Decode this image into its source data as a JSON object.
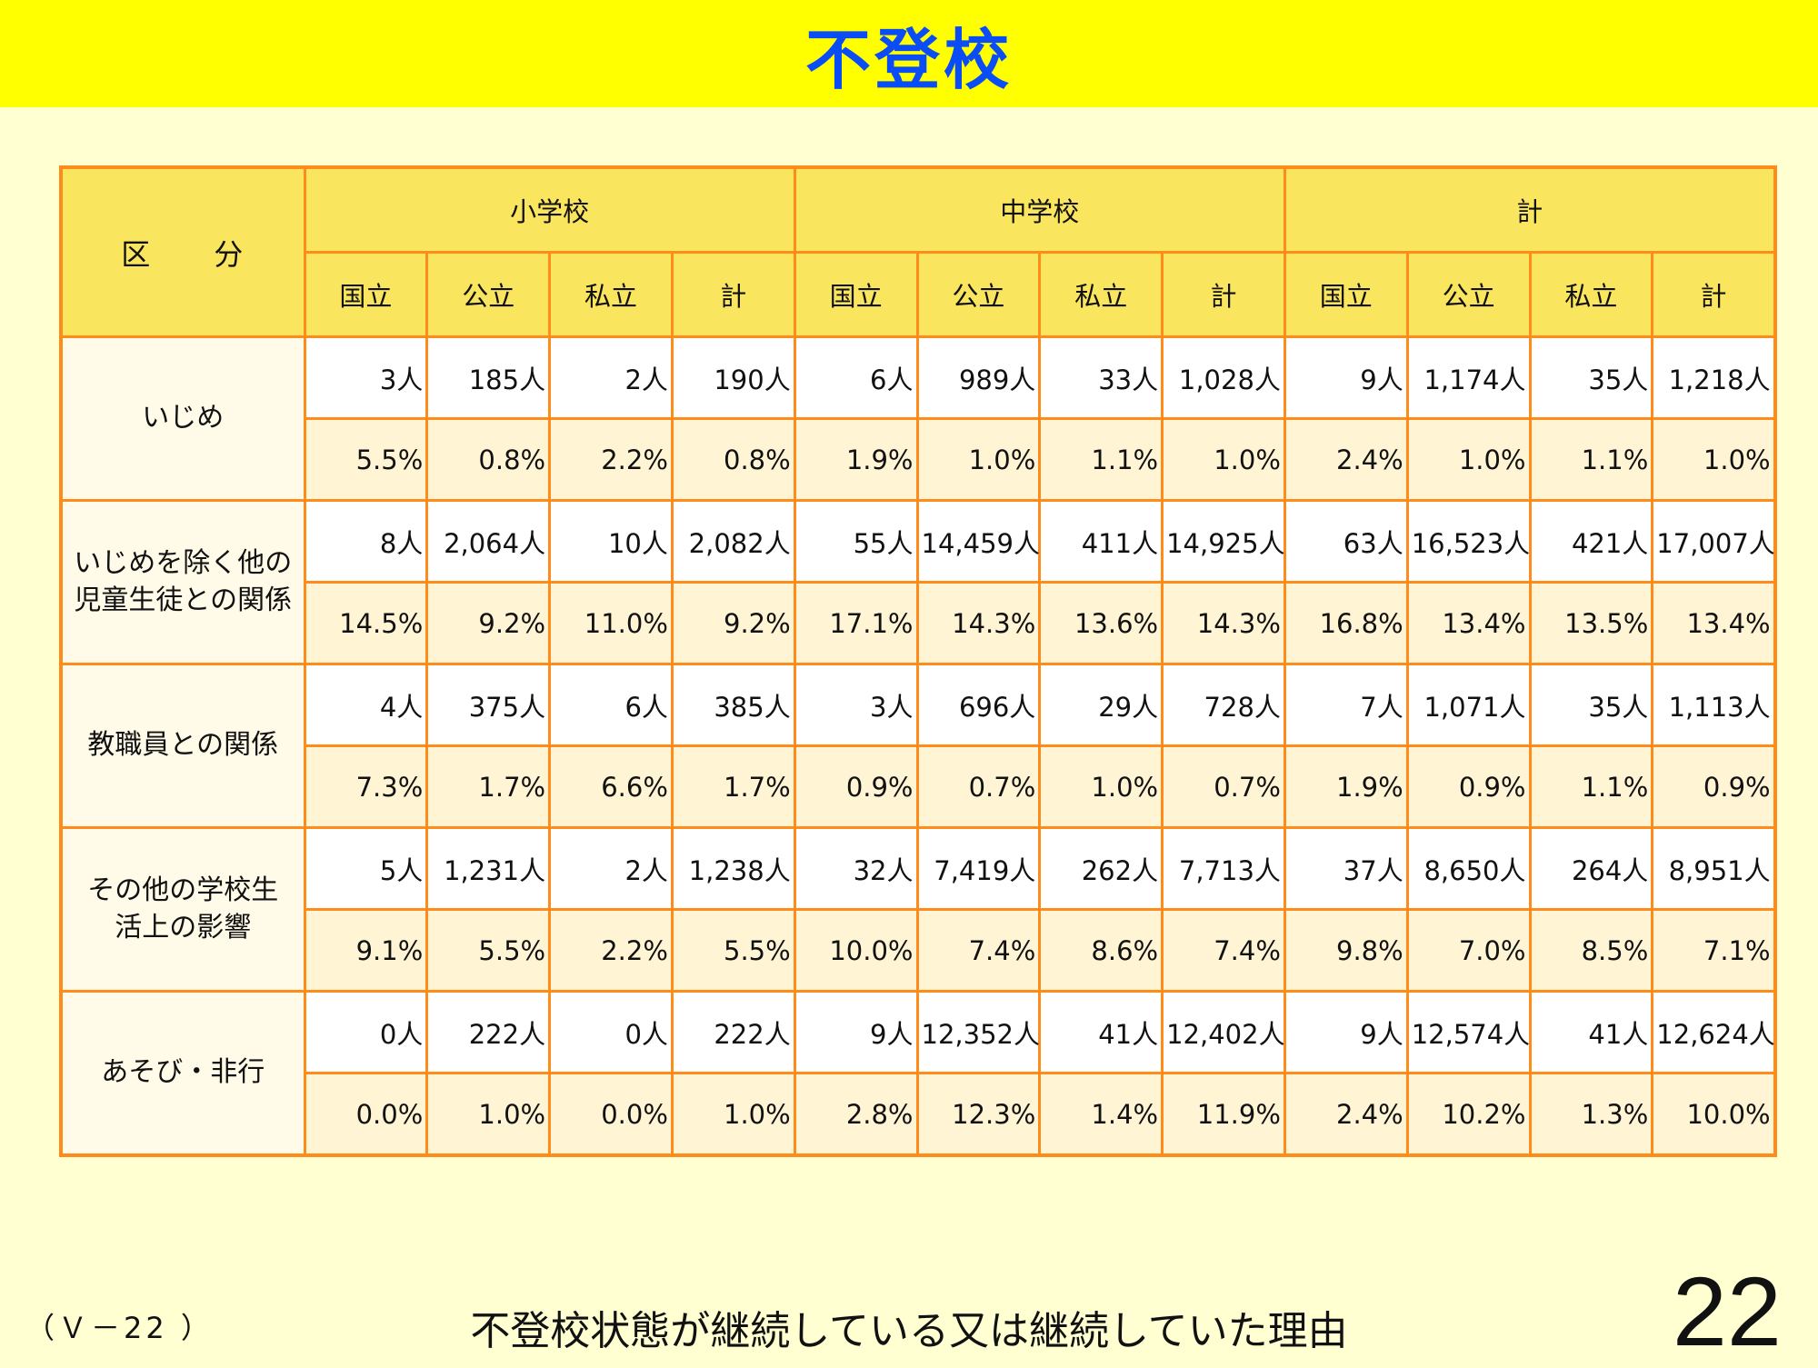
{
  "title": "不登校",
  "table": {
    "category_header": "区　　分",
    "groups": [
      "小学校",
      "中学校",
      "計"
    ],
    "subheaders": [
      "国立",
      "公立",
      "私立",
      "計",
      "国立",
      "公立",
      "私立",
      "計",
      "国立",
      "公立",
      "私立",
      "計"
    ],
    "rows": [
      {
        "category": [
          "いじめ"
        ],
        "counts": [
          "3人",
          "185人",
          "2人",
          "190人",
          "6人",
          "989人",
          "33人",
          "1,028人",
          "9人",
          "1,174人",
          "35人",
          "1,218人"
        ],
        "percents": [
          "5.5%",
          "0.8%",
          "2.2%",
          "0.8%",
          "1.9%",
          "1.0%",
          "1.1%",
          "1.0%",
          "2.4%",
          "1.0%",
          "1.1%",
          "1.0%"
        ]
      },
      {
        "category": [
          "いじめを除く他の",
          "児童生徒との関係"
        ],
        "counts": [
          "8人",
          "2,064人",
          "10人",
          "2,082人",
          "55人",
          "14,459人",
          "411人",
          "14,925人",
          "63人",
          "16,523人",
          "421人",
          "17,007人"
        ],
        "percents": [
          "14.5%",
          "9.2%",
          "11.0%",
          "9.2%",
          "17.1%",
          "14.3%",
          "13.6%",
          "14.3%",
          "16.8%",
          "13.4%",
          "13.5%",
          "13.4%"
        ]
      },
      {
        "category": [
          "教職員との関係"
        ],
        "counts": [
          "4人",
          "375人",
          "6人",
          "385人",
          "3人",
          "696人",
          "29人",
          "728人",
          "7人",
          "1,071人",
          "35人",
          "1,113人"
        ],
        "percents": [
          "7.3%",
          "1.7%",
          "6.6%",
          "1.7%",
          "0.9%",
          "0.7%",
          "1.0%",
          "0.7%",
          "1.9%",
          "0.9%",
          "1.1%",
          "0.9%"
        ]
      },
      {
        "category": [
          "その他の学校生",
          "活上の影響"
        ],
        "counts": [
          "5人",
          "1,231人",
          "2人",
          "1,238人",
          "32人",
          "7,419人",
          "262人",
          "7,713人",
          "37人",
          "8,650人",
          "264人",
          "8,951人"
        ],
        "percents": [
          "9.1%",
          "5.5%",
          "2.2%",
          "5.5%",
          "10.0%",
          "7.4%",
          "8.6%",
          "7.4%",
          "9.8%",
          "7.0%",
          "8.5%",
          "7.1%"
        ]
      },
      {
        "category": [
          "あそび・非行"
        ],
        "counts": [
          "0人",
          "222人",
          "0人",
          "222人",
          "9人",
          "12,352人",
          "41人",
          "12,402人",
          "9人",
          "12,574人",
          "41人",
          "12,624人"
        ],
        "percents": [
          "0.0%",
          "1.0%",
          "0.0%",
          "1.0%",
          "2.8%",
          "12.3%",
          "1.4%",
          "11.9%",
          "2.4%",
          "10.2%",
          "1.3%",
          "10.0%"
        ]
      }
    ]
  },
  "footer": {
    "code": "（Ｖ－22 ）",
    "caption": "不登校状態が継続している又は継続していた理由",
    "page_number": "22"
  },
  "colors": {
    "title_bar": "#ffff00",
    "title_text": "#0a4cf5",
    "background": "#ffffd2",
    "border": "#ff8c1a",
    "header_fill": "#fae55e"
  }
}
